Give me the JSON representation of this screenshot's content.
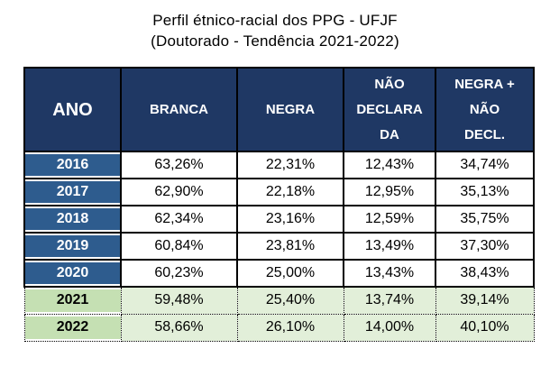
{
  "title": {
    "line1": "Perfil étnico-racial dos PPG - UFJF",
    "line2": "(Doutorado - Tendência 2021-2022)"
  },
  "table": {
    "columns": [
      "ANO",
      "BRANCA",
      "NEGRA",
      "NÃO\nDECLARA\nDA",
      "NEGRA +\nNÃO\nDECL."
    ],
    "rows": [
      [
        "2016",
        "63,26%",
        "22,31%",
        "12,43%",
        "34,74%"
      ],
      [
        "2017",
        "62,90%",
        "22,18%",
        "12,95%",
        "35,13%"
      ],
      [
        "2018",
        "62,34%",
        "23,16%",
        "12,59%",
        "35,75%"
      ],
      [
        "2019",
        "60,84%",
        "23,81%",
        "13,49%",
        "37,30%"
      ],
      [
        "2020",
        "60,23%",
        "25,00%",
        "13,43%",
        "38,43%"
      ],
      [
        "2021",
        "59,48%",
        "25,40%",
        "13,74%",
        "39,14%"
      ],
      [
        "2022",
        "58,66%",
        "26,10%",
        "14,00%",
        "40,10%"
      ]
    ]
  },
  "colors": {
    "header_bg": "#1F3864",
    "year_bg": "#2E5C8E",
    "highlight_year_bg": "#C5E0B3",
    "highlight_cell_bg": "#E2EFD9",
    "border": "#000000",
    "header_text": "#ffffff",
    "body_text": "#000000"
  },
  "chart_data": {
    "type": "table",
    "title": "Perfil étnico-racial dos PPG - UFJF (Doutorado - Tendência 2021-2022)",
    "columns": [
      "ANO",
      "BRANCA",
      "NEGRA",
      "NÃO DECLARADA",
      "NEGRA + NÃO DECL."
    ],
    "rows": [
      [
        "2016",
        "63,26%",
        "22,31%",
        "12,43%",
        "34,74%"
      ],
      [
        "2017",
        "62,90%",
        "22,18%",
        "12,95%",
        "35,13%"
      ],
      [
        "2018",
        "62,34%",
        "23,16%",
        "12,59%",
        "35,75%"
      ],
      [
        "2019",
        "60,84%",
        "23,81%",
        "13,49%",
        "37,30%"
      ],
      [
        "2020",
        "60,23%",
        "25,00%",
        "13,43%",
        "38,43%"
      ],
      [
        "2021",
        "59,48%",
        "25,40%",
        "13,74%",
        "39,14%"
      ],
      [
        "2022",
        "58,66%",
        "26,10%",
        "14,00%",
        "40,10%"
      ]
    ],
    "highlighted_rows": [
      "2021",
      "2022"
    ],
    "notes": "Values use comma decimal separator; rows 2021-2022 highlighted green with dotted borders indicating tendência (trend/projection)."
  }
}
